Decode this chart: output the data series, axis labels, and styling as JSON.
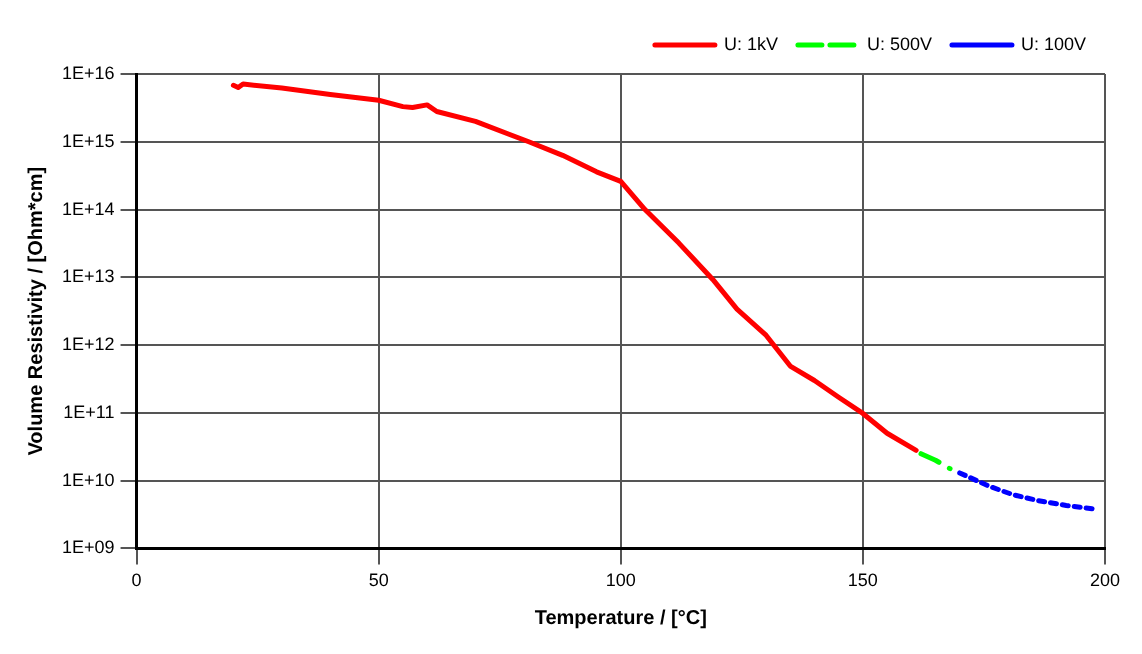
{
  "chart_data": {
    "type": "line",
    "xlabel": "Temperature / [°C]",
    "ylabel": "Volume Resistivity / [Ohm*cm]",
    "log": "y",
    "grid": true,
    "legend": "top right",
    "marker": "none",
    "xlim": [
      0,
      200
    ],
    "xticks": [
      0,
      50,
      100,
      150,
      200
    ],
    "ylim": [
      1000000000.0,
      1e+16
    ],
    "yticks": [
      {
        "value": 1000000000.0,
        "label": "1E+09"
      },
      {
        "value": 10000000000.0,
        "label": "1E+10"
      },
      {
        "value": 100000000000.0,
        "label": "1E+11"
      },
      {
        "value": 1000000000000.0,
        "label": "1E+12"
      },
      {
        "value": 10000000000000.0,
        "label": "1E+13"
      },
      {
        "value": 100000000000000.0,
        "label": "1E+14"
      },
      {
        "value": 1000000000000000.0,
        "label": "1E+15"
      },
      {
        "value": 1e+16,
        "label": "1E+16"
      }
    ],
    "series": [
      {
        "name": "U: 1kV",
        "color": "#ff0000",
        "line_style": "solid",
        "x": [
          20,
          21,
          22,
          30,
          40,
          50,
          55,
          57,
          60,
          62,
          70,
          81,
          88,
          95,
          100,
          105,
          112,
          119,
          124,
          130,
          135,
          140,
          145,
          150,
          155,
          161
        ],
        "values": [
          6800000000000000.0,
          6300000000000000.0,
          7100000000000000.0,
          6200000000000000.0,
          5000000000000000.0,
          4100000000000000.0,
          3300000000000000.0,
          3200000000000000.0,
          3500000000000000.0,
          2800000000000000.0,
          2000000000000000.0,
          1000000000000000.0,
          630000000000000.0,
          360000000000000.0,
          260000000000000.0,
          100000000000000.0,
          32000000000000.0,
          9300000000000.0,
          3400000000000.0,
          1400000000000.0,
          490000000000.0,
          300000000000.0,
          170000000000.0,
          98000000000.0,
          50000000000.0,
          28000000000.0
        ]
      },
      {
        "name": "U: 500V",
        "color": "#00ff00",
        "line_style": "dashed",
        "x": [
          162,
          165,
          168
        ],
        "values": [
          25000000000.0,
          20000000000.0,
          15000000000.0
        ]
      },
      {
        "name": "U: 100V",
        "color": "#0000ff",
        "line_style": "dotted",
        "x": [
          170,
          176,
          181,
          186,
          192,
          198
        ],
        "values": [
          13000000000.0,
          8300000000.0,
          6200000000.0,
          5100000000.0,
          4300000000.0,
          3800000000.0
        ]
      }
    ]
  }
}
